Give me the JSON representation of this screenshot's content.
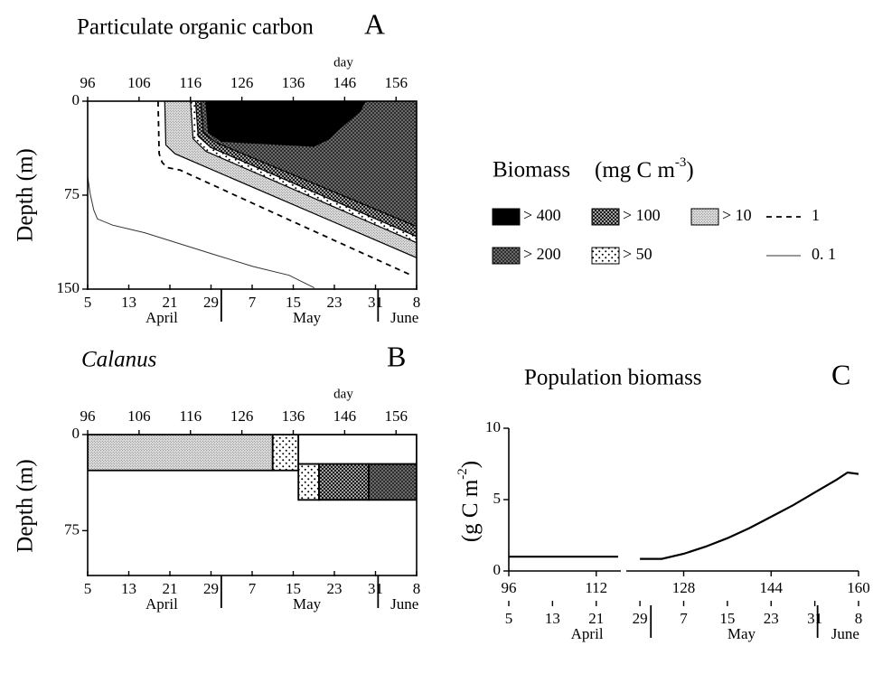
{
  "chart_data": [
    {
      "type": "contour",
      "title": "Particulate organic carbon",
      "panel": "A",
      "xlabel": "day",
      "ylabel": "Depth (m)",
      "xlim": [
        96,
        160
      ],
      "xticks": [
        96,
        106,
        116,
        126,
        136,
        146,
        156
      ],
      "ylim": [
        0,
        150
      ],
      "yticks": [
        0,
        75,
        150
      ],
      "y_inverted": true,
      "frame": true,
      "date_ticks": [
        {
          "value": 96,
          "label": "5"
        },
        {
          "value": 104,
          "label": "13"
        },
        {
          "value": 112,
          "label": "21"
        },
        {
          "value": 120,
          "label": "29"
        },
        {
          "value": 128,
          "label": "7"
        },
        {
          "value": 136,
          "label": "15"
        },
        {
          "value": 144,
          "label": "23"
        },
        {
          "value": 152,
          "label": "31"
        },
        {
          "value": 160,
          "label": "8"
        }
      ],
      "months": [
        "April",
        "May",
        "June"
      ],
      "month_ticks": [
        122,
        152.5
      ],
      "legend_title": "Biomass",
      "legend_unit": [
        "(mg C m",
        "-3",
        ")"
      ],
      "series": [
        {
          "name": "> 400",
          "color": "#000000",
          "pattern": "solid",
          "x": [
            119,
            119.5,
            122,
            140,
            143,
            145,
            147,
            149,
            150
          ],
          "y": [
            0,
            25,
            32,
            36,
            30,
            22,
            15,
            8,
            0
          ]
        },
        {
          "name": "> 200",
          "color": "#6b6b6b",
          "pattern": "dark-dots",
          "x": [
            118,
            118.5,
            121,
            160,
            160
          ],
          "y": [
            0,
            25,
            33,
            100,
            0
          ]
        },
        {
          "name": "> 100",
          "color": "#1a1a1a",
          "pattern": "light-dots",
          "x": [
            117,
            117.5,
            120,
            160,
            160
          ],
          "y": [
            0,
            28,
            37,
            108,
            0
          ]
        },
        {
          "name": "> 50",
          "color": "#ffffff",
          "pattern": "sparse-dots",
          "x": [
            116,
            116.5,
            119,
            160,
            160,
            null,
            150,
            152,
            151,
            153,
            152,
            154,
            155,
            160,
            160
          ],
          "y": [
            0,
            30,
            40,
            113,
            0,
            null,
            0,
            10,
            20,
            28,
            38,
            45,
            55,
            55,
            0
          ]
        },
        {
          "name": "> 10",
          "color": "#e2e2e2",
          "pattern": "fine-dots",
          "x": [
            111,
            111.2,
            113,
            160,
            160
          ],
          "y": [
            0,
            35,
            42,
            125,
            0
          ]
        },
        {
          "name": "1",
          "color": "#000000",
          "style": "dashed",
          "x": [
            109.7,
            109.9,
            110.5,
            111.5,
            114,
            130,
            145,
            159
          ],
          "y": [
            0,
            42,
            49,
            53,
            55,
            85,
            113,
            139
          ]
        },
        {
          "name": "0. 1",
          "color": "#333333",
          "style": "thin",
          "x": [
            96,
            96.5,
            97.2,
            97.9,
            100.9,
            107.1,
            114.1,
            121.1,
            128.2,
            135.2,
            140.1
          ],
          "y": [
            60,
            74,
            87,
            94,
            99,
            105,
            114,
            123,
            132,
            139,
            149
          ]
        }
      ]
    },
    {
      "type": "block",
      "title": "Calanus",
      "panel": "B",
      "xlabel": "day",
      "ylabel": "Depth (m)",
      "xlim": [
        96,
        160
      ],
      "xticks": [
        96,
        106,
        116,
        126,
        136,
        146,
        156
      ],
      "ylim": [
        0,
        110
      ],
      "yticks": [
        0,
        75
      ],
      "y_inverted": true,
      "frame": true,
      "date_ticks": [
        {
          "value": 96,
          "label": "5"
        },
        {
          "value": 104,
          "label": "13"
        },
        {
          "value": 112,
          "label": "21"
        },
        {
          "value": 120,
          "label": "29"
        },
        {
          "value": 128,
          "label": "7"
        },
        {
          "value": 136,
          "label": "15"
        },
        {
          "value": 144,
          "label": "23"
        },
        {
          "value": 152,
          "label": "31"
        },
        {
          "value": 160,
          "label": "8"
        }
      ],
      "months": [
        "April",
        "May",
        "June"
      ],
      "month_ticks": [
        122,
        152.5
      ],
      "blocks": [
        {
          "level": "> 10",
          "days": [
            96,
            132
          ],
          "depths": [
            0,
            28
          ]
        },
        {
          "level": "> 50",
          "days": [
            132,
            137
          ],
          "depths": [
            0,
            28
          ]
        },
        {
          "days": [
            137,
            160
          ],
          "depths": [
            0,
            23
          ]
        },
        {
          "level": "> 50",
          "days": [
            137,
            141
          ],
          "depths": [
            23,
            51
          ]
        },
        {
          "level": "> 100",
          "days": [
            141,
            150.7
          ],
          "depths": [
            23,
            51
          ]
        },
        {
          "level": "> 200",
          "days": [
            150.7,
            160
          ],
          "depths": [
            23,
            51
          ]
        }
      ]
    },
    {
      "type": "line",
      "title": "Population biomass",
      "panel": "C",
      "ylabel": [
        "(g C m",
        "-2",
        ")"
      ],
      "xlim": [
        96,
        160
      ],
      "xticks": [
        96,
        112,
        128,
        144,
        160
      ],
      "xbreak": [
        116.5,
        117.5
      ],
      "ylim": [
        0,
        10
      ],
      "yticks": [
        0,
        5,
        10
      ],
      "y_inverted": false,
      "frame": false,
      "date_ticks": [
        {
          "value": 96,
          "label": "5"
        },
        {
          "value": 104,
          "label": "13"
        },
        {
          "value": 112,
          "label": "21"
        },
        {
          "value": 120,
          "label": "29"
        },
        {
          "value": 128,
          "label": "7"
        },
        {
          "value": 136,
          "label": "15"
        },
        {
          "value": 144,
          "label": "23"
        },
        {
          "value": 152,
          "label": "31"
        },
        {
          "value": 160,
          "label": "8"
        }
      ],
      "months": [
        "April",
        "May",
        "June"
      ],
      "month_ticks": [
        122,
        152.5
      ],
      "color": "#000000",
      "x": [
        96,
        100,
        104,
        108,
        112,
        116,
        117,
        120,
        124,
        128,
        132,
        136,
        140,
        144,
        148,
        152,
        156,
        158,
        160
      ],
      "values": [
        1,
        1,
        1,
        1,
        1,
        1,
        null,
        0.85,
        0.85,
        1.2,
        1.7,
        2.3,
        3.0,
        3.8,
        4.6,
        5.5,
        6.4,
        6.9,
        6.8
      ]
    }
  ]
}
